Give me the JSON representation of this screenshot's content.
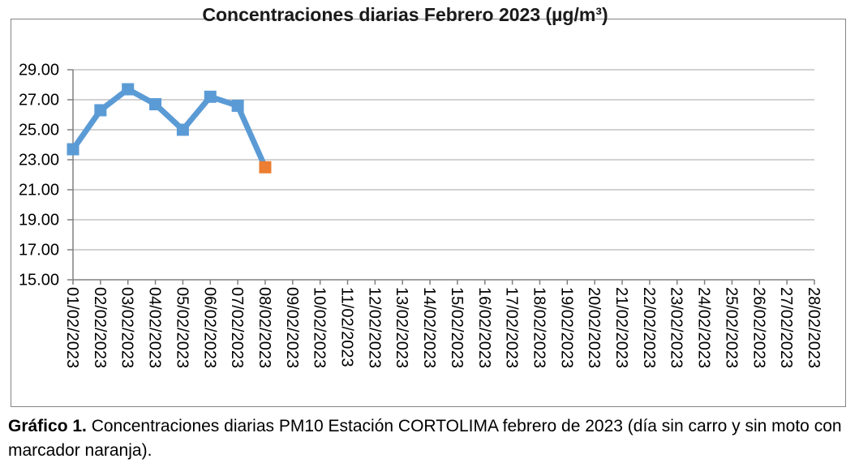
{
  "figure": {
    "caption_label": "Gráfico 1.",
    "caption_text": " Concentraciones diarias PM10 Estación CORTOLIMA febrero de 2023 (día sin carro y sin moto con marcador naranja)."
  },
  "chart_data": {
    "type": "line",
    "title": "Concentraciones diarias Febrero 2023 (µg/m³)",
    "xlabel": "",
    "ylabel": "",
    "categories": [
      "01/02/2023",
      "02/02/2023",
      "03/02/2023",
      "04/02/2023",
      "05/02/2023",
      "06/02/2023",
      "07/02/2023",
      "08/02/2023",
      "09/02/2023",
      "10/02/2023",
      "11/02/2023",
      "12/02/2023",
      "13/02/2023",
      "14/02/2023",
      "15/02/2023",
      "16/02/2023",
      "17/02/2023",
      "18/02/2023",
      "19/02/2023",
      "20/02/2023",
      "21/02/2023",
      "22/02/2023",
      "23/02/2023",
      "24/02/2023",
      "25/02/2023",
      "26/02/2023",
      "27/02/2023",
      "28/02/2023"
    ],
    "values": [
      23.7,
      26.3,
      27.7,
      26.7,
      25.0,
      27.2,
      26.6,
      22.5,
      null,
      null,
      null,
      null,
      null,
      null,
      null,
      null,
      null,
      null,
      null,
      null,
      null,
      null,
      null,
      null,
      null,
      null,
      null,
      null
    ],
    "ylim": [
      15,
      29
    ],
    "ytick_step": 2,
    "ytick_labels": [
      "29.00",
      "27.00",
      "25.00",
      "23.00",
      "21.00",
      "19.00",
      "17.00",
      "15.00"
    ],
    "grid": true,
    "legend": "none",
    "marker": "square",
    "line_color": "#5B9BD5",
    "highlight_index": 7,
    "highlight_color": "#ED7D31",
    "grid_color": "#A6A6A6",
    "axis_color": "#808080"
  }
}
